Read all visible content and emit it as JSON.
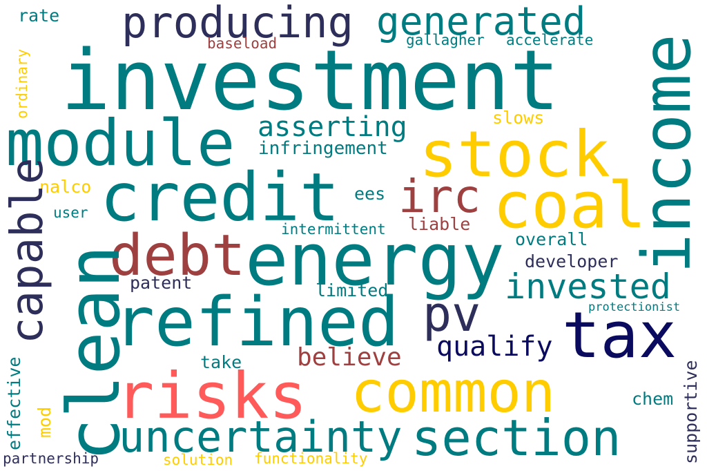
{
  "colors": {
    "teal": "#007b80",
    "yellow": "#ffcc00",
    "navy": "#2e2e5a",
    "darknavy": "#0a0a5e",
    "brown": "#9e4040",
    "coral": "#ff5a5a"
  },
  "words": [
    "investment",
    "module",
    "producing",
    "generated",
    "income",
    "stock",
    "credit",
    "coal",
    "irc",
    "clean",
    "energy",
    "debt",
    "capable",
    "refined",
    "pv",
    "tax",
    "invested",
    "risks",
    "common",
    "uncertainty",
    "section",
    "asserting",
    "infringement",
    "qualify",
    "believe",
    "rate",
    "baseload",
    "gallagher",
    "accelerate",
    "ordinary",
    "slows",
    "nalco",
    "ees",
    "user",
    "intermittent",
    "liable",
    "overall",
    "developer",
    "patent",
    "limited",
    "protectionist",
    "take",
    "effective",
    "supportive",
    "chem",
    "mod",
    "partnership",
    "solution",
    "functionality"
  ]
}
